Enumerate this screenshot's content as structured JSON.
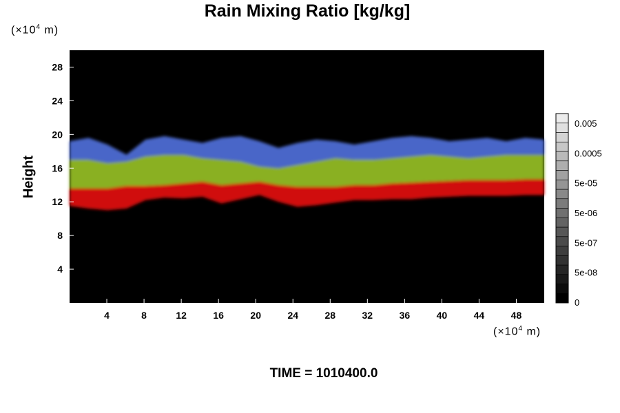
{
  "chart_data": {
    "type": "heatmap",
    "title": "Rain Mixing Ratio [kg/kg]",
    "ylabel": "Height",
    "xlabel": "",
    "x_unit": {
      "prefix": "(×10",
      "exponent": "4",
      "suffix": " m)"
    },
    "y_unit": {
      "prefix": "(×10",
      "exponent": "4",
      "suffix": " m)"
    },
    "x_ticks": [
      4,
      8,
      12,
      16,
      20,
      24,
      28,
      32,
      36,
      40,
      44,
      48
    ],
    "y_ticks": [
      4,
      8,
      12,
      16,
      20,
      24,
      28
    ],
    "xlim": [
      0,
      51
    ],
    "ylim": [
      0,
      30
    ],
    "background_color": "#000000",
    "layers": [
      {
        "name": "low",
        "color": "#d01010",
        "bottom_km": [
          11.5,
          11.2,
          11.0,
          11.2,
          12.2,
          12.5,
          12.4,
          12.6,
          11.8,
          12.3,
          12.8,
          12.0,
          11.4,
          11.6,
          11.9,
          12.2,
          12.2,
          12.3,
          12.3,
          12.5,
          12.6,
          12.7,
          12.7,
          12.7,
          12.8,
          12.8
        ],
        "top_km": [
          13.6,
          13.6,
          13.6,
          13.9,
          13.9,
          14.0,
          14.2,
          14.4,
          14.0,
          14.2,
          14.4,
          14.0,
          13.8,
          13.8,
          13.8,
          14.0,
          14.0,
          14.2,
          14.3,
          14.4,
          14.5,
          14.6,
          14.6,
          14.6,
          14.7,
          14.7
        ]
      },
      {
        "name": "mid",
        "color": "#8ab020",
        "bottom_km": [
          13.6,
          13.6,
          13.6,
          13.9,
          13.9,
          14.0,
          14.2,
          14.4,
          14.0,
          14.2,
          14.4,
          14.0,
          13.8,
          13.8,
          13.8,
          14.0,
          14.0,
          14.2,
          14.3,
          14.4,
          14.5,
          14.6,
          14.6,
          14.6,
          14.7,
          14.7
        ],
        "top_km": [
          17.0,
          17.0,
          16.6,
          16.8,
          17.4,
          17.6,
          17.6,
          17.2,
          17.0,
          16.8,
          16.2,
          16.0,
          16.4,
          16.8,
          17.2,
          17.0,
          17.0,
          17.2,
          17.4,
          17.6,
          17.4,
          17.2,
          17.4,
          17.6,
          17.6,
          17.6
        ]
      },
      {
        "name": "high",
        "color": "#4a66c8",
        "bottom_km": [
          17.0,
          17.0,
          16.6,
          16.8,
          17.4,
          17.6,
          17.6,
          17.2,
          17.0,
          16.8,
          16.2,
          16.0,
          16.4,
          16.8,
          17.2,
          17.0,
          17.0,
          17.2,
          17.4,
          17.6,
          17.4,
          17.2,
          17.4,
          17.6,
          17.6,
          17.6
        ],
        "top_km": [
          19.2,
          19.6,
          18.8,
          17.6,
          19.4,
          19.8,
          19.4,
          19.0,
          19.6,
          19.8,
          19.2,
          18.4,
          19.0,
          19.4,
          19.2,
          18.8,
          19.2,
          19.6,
          19.8,
          19.6,
          19.2,
          19.4,
          19.6,
          19.2,
          19.6,
          19.4
        ]
      }
    ],
    "colorbar": {
      "labels": [
        "0.005",
        "0.0005",
        "5e-05",
        "5e-06",
        "5e-07",
        "5e-08",
        "0"
      ],
      "n_bins": 20,
      "color_top": "#ececec",
      "color_bottom": "#000000"
    }
  },
  "footer": {
    "time_label": "TIME = 1010400.0"
  }
}
